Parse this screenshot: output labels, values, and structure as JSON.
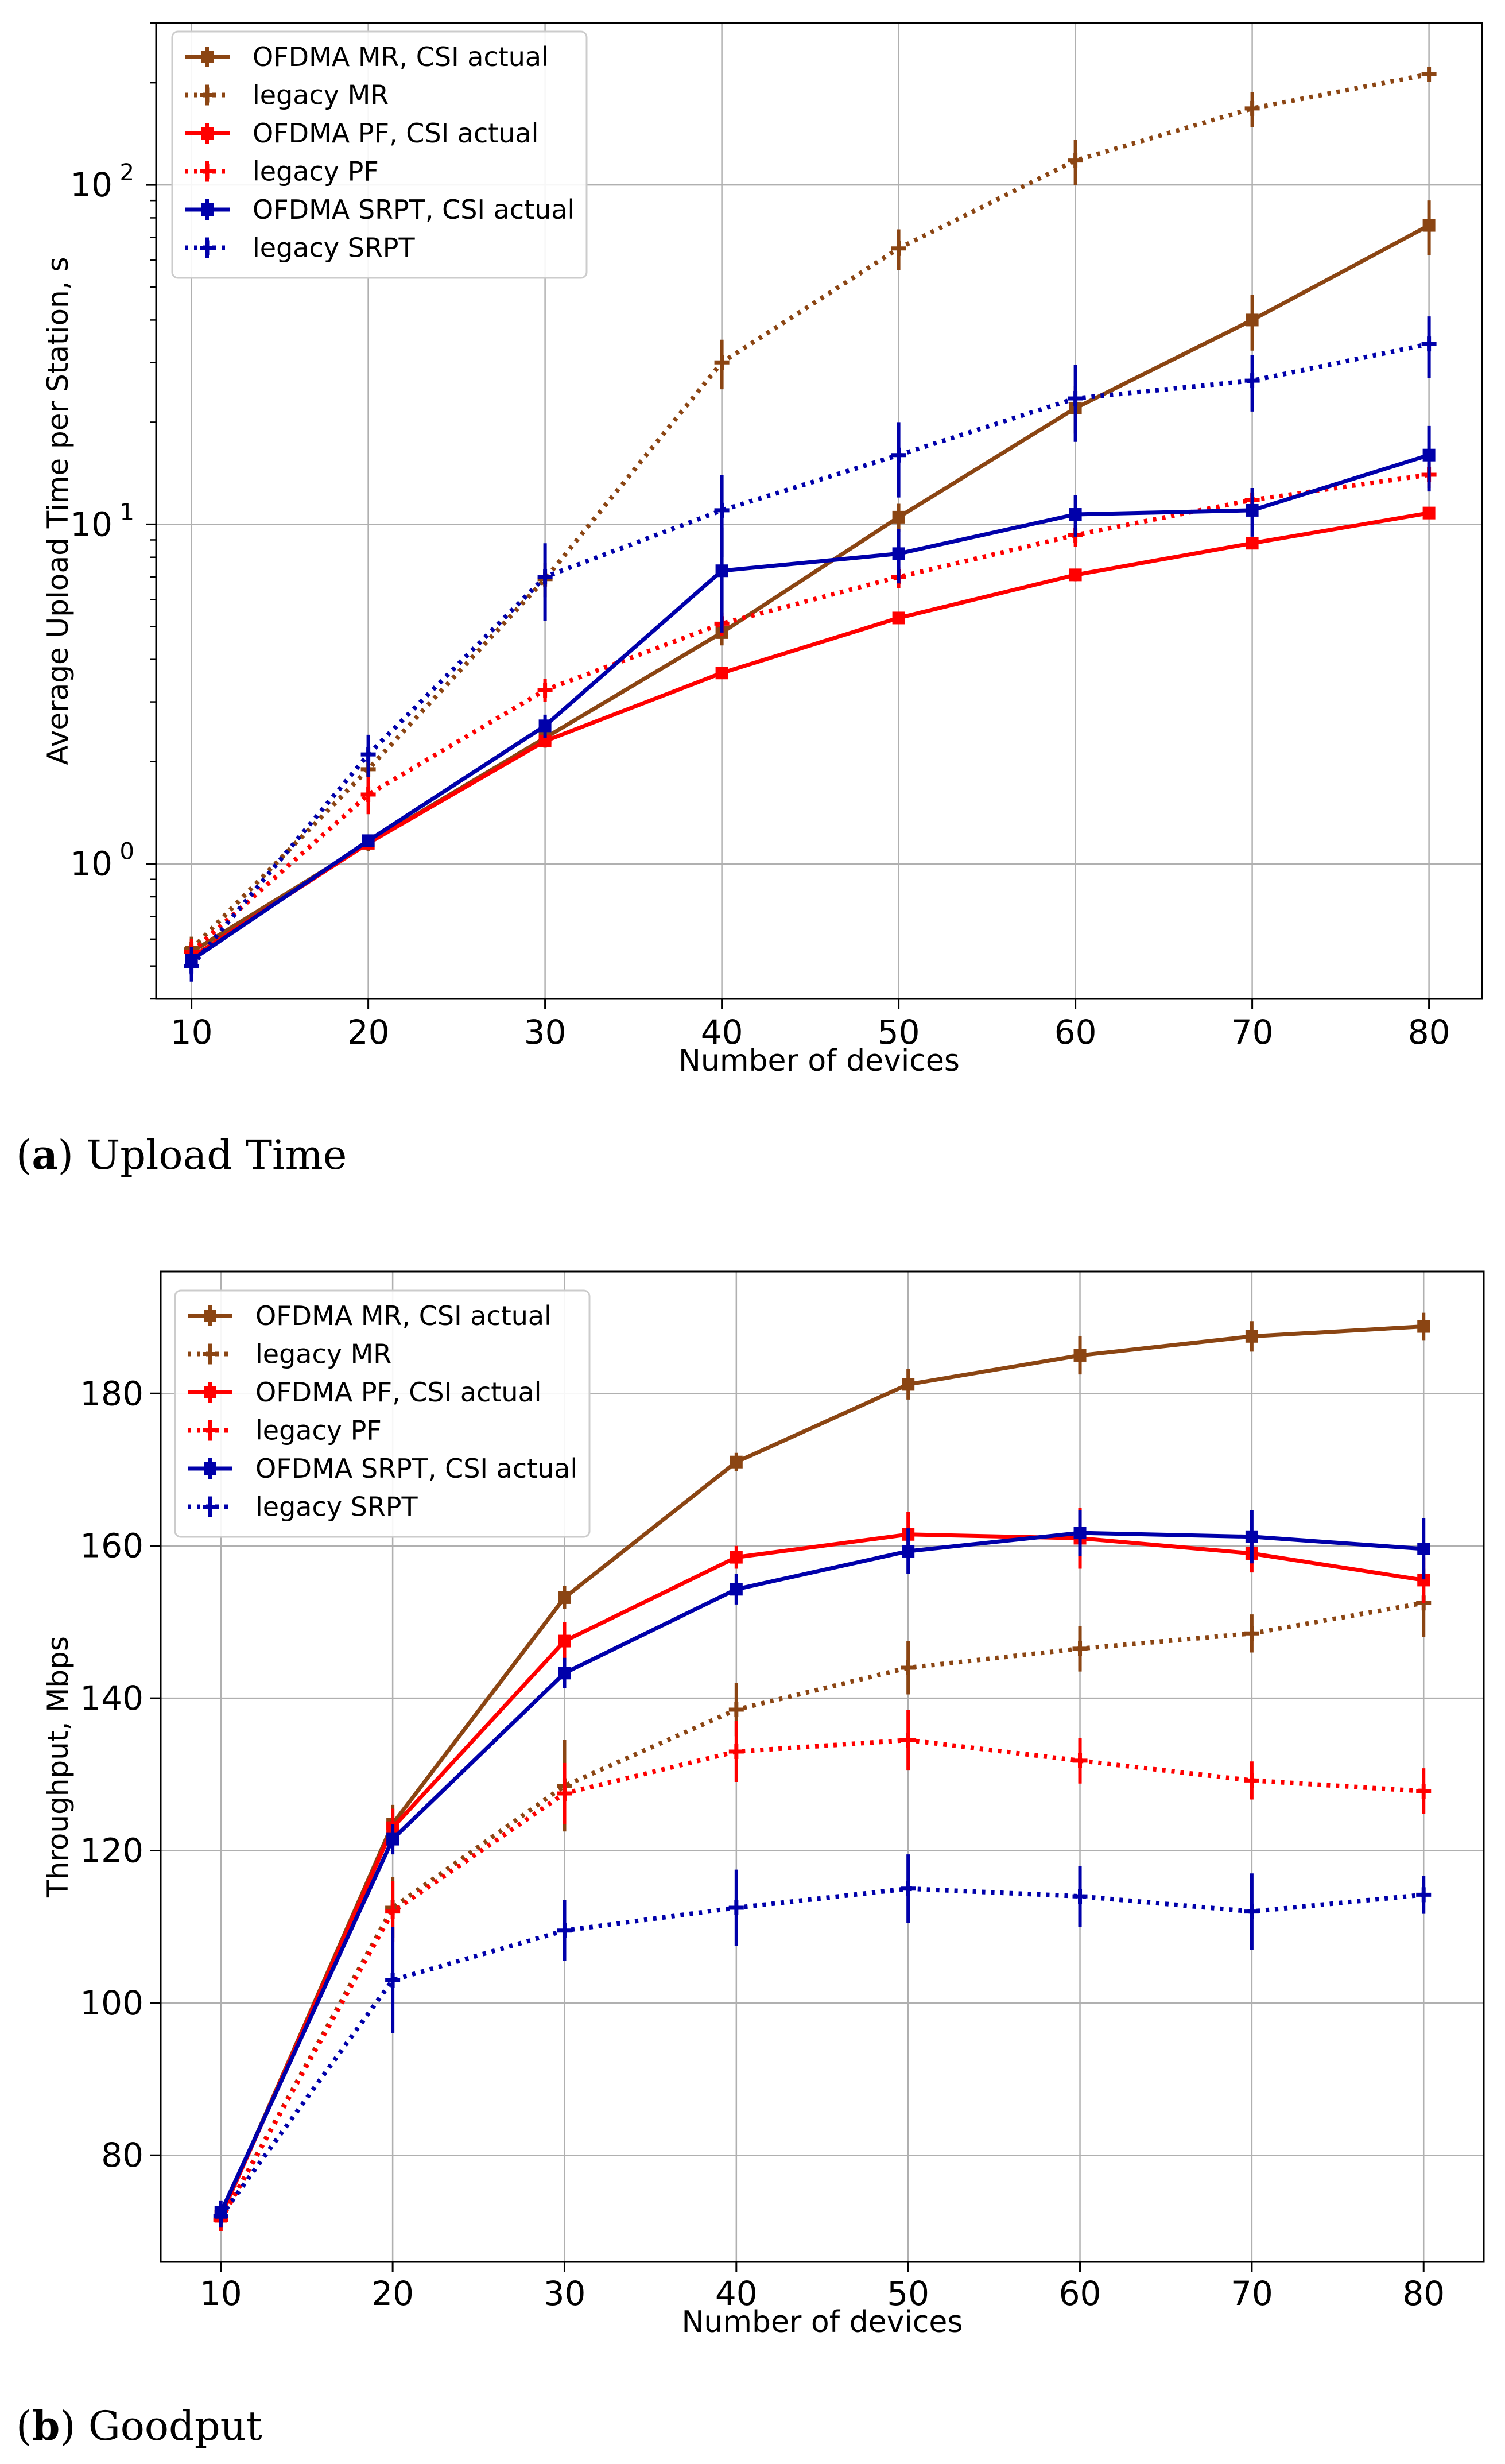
{
  "captions": [
    {
      "label": "a",
      "text": "Upload Time"
    },
    {
      "label": "b",
      "text": "Goodput"
    }
  ],
  "colors": {
    "mr": "#8B4513",
    "pf": "#FF0000",
    "srpt": "#0000AA",
    "grid": "#b0b0b0"
  },
  "chart_data": [
    {
      "type": "line",
      "title": "",
      "xlabel": "Number of devices",
      "ylabel": "Average Upload Time per Station, s",
      "yscale": "log",
      "x": [
        10,
        20,
        30,
        40,
        50,
        60,
        70,
        80
      ],
      "xticks": [
        "10",
        "20",
        "30",
        "40",
        "50",
        "60",
        "70",
        "80"
      ],
      "xlim": [
        8,
        83
      ],
      "ylim": [
        0.4,
        300
      ],
      "ytick_values": [
        1,
        10,
        100
      ],
      "ytick_labels": [
        {
          "base": "10",
          "exp": "0"
        },
        {
          "base": "10",
          "exp": "1"
        },
        {
          "base": "10",
          "exp": "2"
        }
      ],
      "grid": true,
      "legend_position": "top-left",
      "series": [
        {
          "name": "OFDMA MR, CSI actual",
          "color": "#8B4513",
          "style": "solid",
          "values": [
            0.55,
            1.15,
            2.35,
            4.8,
            10.5,
            22,
            40,
            76
          ],
          "errors": [
            0.05,
            0.06,
            0.15,
            0.4,
            1.0,
            3.5,
            7.5,
            14
          ]
        },
        {
          "name": "legacy MR",
          "color": "#8B4513",
          "style": "dotted",
          "values": [
            0.56,
            1.9,
            6.9,
            30,
            65,
            118,
            168,
            212
          ],
          "errors": [
            0.05,
            0.25,
            0.8,
            5,
            9,
            18,
            20,
            10
          ]
        },
        {
          "name": "OFDMA PF, CSI actual",
          "color": "#FF0000",
          "style": "solid",
          "values": [
            0.53,
            1.15,
            2.3,
            3.65,
            5.3,
            7.1,
            8.8,
            10.8
          ],
          "errors": [
            0.03,
            0.04,
            0.1,
            0.15,
            0.2,
            0.3,
            0.35,
            0.4
          ]
        },
        {
          "name": "legacy PF",
          "color": "#FF0000",
          "style": "dotted",
          "values": [
            0.55,
            1.6,
            3.25,
            5.1,
            7,
            9.3,
            11.8,
            14
          ],
          "errors": [
            0.05,
            0.2,
            0.25,
            0.4,
            0.5,
            0.7,
            1.0,
            1.2
          ]
        },
        {
          "name": "OFDMA SRPT, CSI actual",
          "color": "#0000AA",
          "style": "solid",
          "values": [
            0.52,
            1.17,
            2.55,
            7.3,
            8.2,
            10.7,
            11,
            16
          ],
          "errors": [
            0.05,
            0.05,
            0.2,
            2.5,
            1.5,
            1.5,
            1.8,
            3.5
          ]
        },
        {
          "name": "legacy SRPT",
          "color": "#0000AA",
          "style": "dotted",
          "values": [
            0.5,
            2.1,
            7,
            11,
            16,
            23.5,
            26.5,
            34
          ],
          "errors": [
            0.05,
            0.3,
            1.8,
            3,
            4,
            6,
            5,
            7
          ]
        }
      ]
    },
    {
      "type": "line",
      "title": "",
      "xlabel": "Number of devices",
      "ylabel": "Throughput, Mbps",
      "yscale": "linear",
      "x": [
        10,
        20,
        30,
        40,
        50,
        60,
        70,
        80
      ],
      "xticks": [
        "10",
        "20",
        "30",
        "40",
        "50",
        "60",
        "70",
        "80"
      ],
      "xlim": [
        6.5,
        83.5
      ],
      "ylim": [
        66,
        196
      ],
      "yticks": [
        80,
        100,
        120,
        140,
        160,
        180
      ],
      "grid": true,
      "legend_position": "top-left",
      "series": [
        {
          "name": "OFDMA MR, CSI actual",
          "color": "#8B4513",
          "style": "solid",
          "values": [
            72,
            123.5,
            153.2,
            171,
            181.2,
            185,
            187.5,
            188.8
          ],
          "errors": [
            1.5,
            2.5,
            1.5,
            1.2,
            2,
            2.5,
            2,
            1.8
          ]
        },
        {
          "name": "legacy MR",
          "color": "#8B4513",
          "style": "dotted",
          "values": [
            71.5,
            112.5,
            128.5,
            138.5,
            144,
            146.5,
            148.5,
            152.5
          ],
          "errors": [
            1.5,
            4,
            6,
            3.5,
            3.5,
            3,
            2.5,
            4.5
          ]
        },
        {
          "name": "OFDMA PF, CSI actual",
          "color": "#FF0000",
          "style": "solid",
          "values": [
            72,
            123,
            147.5,
            158.5,
            161.5,
            161,
            159,
            155.5
          ],
          "errors": [
            1.5,
            2.5,
            2.5,
            1.5,
            3,
            4,
            2.5,
            3
          ]
        },
        {
          "name": "legacy PF",
          "color": "#FF0000",
          "style": "dotted",
          "values": [
            71.5,
            112,
            127.5,
            133,
            134.5,
            131.8,
            129.2,
            127.8
          ],
          "errors": [
            1.5,
            4,
            4,
            4,
            4,
            3,
            2.5,
            3
          ]
        },
        {
          "name": "OFDMA SRPT, CSI actual",
          "color": "#0000AA",
          "style": "solid",
          "values": [
            72.5,
            121.5,
            143.3,
            154.3,
            159.3,
            161.7,
            161.2,
            159.6
          ],
          "errors": [
            1.5,
            2,
            2,
            2,
            3,
            3,
            3.5,
            4
          ]
        },
        {
          "name": "legacy SRPT",
          "color": "#0000AA",
          "style": "dotted",
          "values": [
            72,
            103,
            109.5,
            112.5,
            115,
            114,
            112,
            114.2
          ],
          "errors": [
            1.5,
            7,
            4,
            5,
            4.5,
            4,
            5,
            2.5
          ]
        }
      ]
    }
  ]
}
